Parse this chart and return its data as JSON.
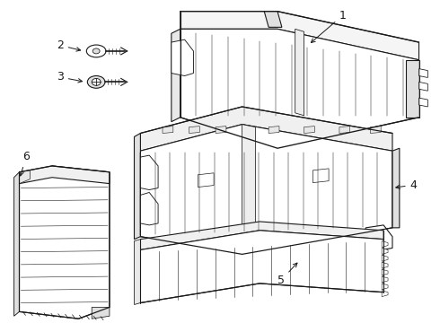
{
  "bg_color": "#ffffff",
  "line_color": "#1a1a1a",
  "fig_width": 4.9,
  "fig_height": 3.6,
  "dpi": 100,
  "components": {
    "comp1_label": "1",
    "comp2_label": "2",
    "comp3_label": "3",
    "comp4_label": "4",
    "comp5_label": "5",
    "comp6_label": "6"
  }
}
